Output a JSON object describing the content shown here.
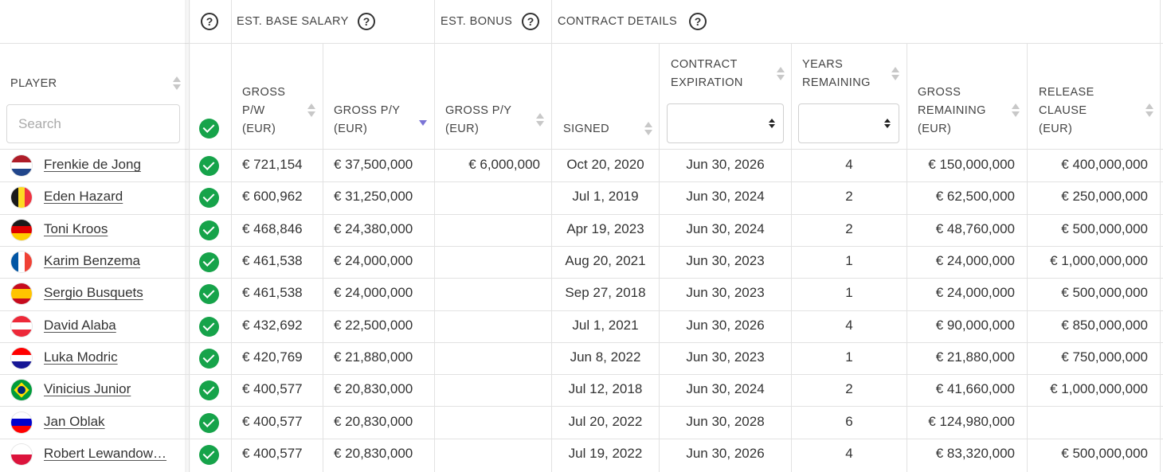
{
  "groups": {
    "est_base_salary": "EST. BASE SALARY",
    "est_bonus": "EST. BONUS",
    "contract_details": "CONTRACT DETAILS"
  },
  "columns": {
    "player": "PLAYER",
    "gross_pw": [
      "GROSS",
      "P/W",
      "(EUR)"
    ],
    "gross_py": [
      "GROSS P/Y",
      "(EUR)"
    ],
    "bonus_py": [
      "GROSS P/Y",
      "(EUR)"
    ],
    "signed": "SIGNED",
    "expiration": [
      "CONTRACT",
      "EXPIRATION"
    ],
    "years": [
      "YEARS",
      "REMAINING"
    ],
    "remaining": [
      "GROSS",
      "REMAINING",
      "(EUR)"
    ],
    "release": [
      "RELEASE",
      "CLAUSE",
      "(EUR)"
    ]
  },
  "search": {
    "placeholder": "Search"
  },
  "help_icon": "?",
  "rows": [
    {
      "name": "Frenkie de Jong",
      "flag": "netherlands",
      "pw": "€ 721,154",
      "py": "€ 37,500,000",
      "bonus": "€ 6,000,000",
      "signed": "Oct 20, 2020",
      "exp": "Jun 30, 2026",
      "years": "4",
      "remaining": "€ 150,000,000",
      "release": "€ 400,000,000"
    },
    {
      "name": "Eden Hazard",
      "flag": "belgium",
      "pw": "€ 600,962",
      "py": "€ 31,250,000",
      "bonus": "",
      "signed": "Jul 1, 2019",
      "exp": "Jun 30, 2024",
      "years": "2",
      "remaining": "€ 62,500,000",
      "release": "€ 250,000,000"
    },
    {
      "name": "Toni Kroos",
      "flag": "germany",
      "pw": "€ 468,846",
      "py": "€ 24,380,000",
      "bonus": "",
      "signed": "Apr 19, 2023",
      "exp": "Jun 30, 2024",
      "years": "2",
      "remaining": "€ 48,760,000",
      "release": "€ 500,000,000"
    },
    {
      "name": "Karim Benzema",
      "flag": "france",
      "pw": "€ 461,538",
      "py": "€ 24,000,000",
      "bonus": "",
      "signed": "Aug 20, 2021",
      "exp": "Jun 30, 2023",
      "years": "1",
      "remaining": "€ 24,000,000",
      "release": "€ 1,000,000,000"
    },
    {
      "name": "Sergio Busquets",
      "flag": "spain",
      "pw": "€ 461,538",
      "py": "€ 24,000,000",
      "bonus": "",
      "signed": "Sep 27, 2018",
      "exp": "Jun 30, 2023",
      "years": "1",
      "remaining": "€ 24,000,000",
      "release": "€ 500,000,000"
    },
    {
      "name": "David Alaba",
      "flag": "austria",
      "pw": "€ 432,692",
      "py": "€ 22,500,000",
      "bonus": "",
      "signed": "Jul 1, 2021",
      "exp": "Jun 30, 2026",
      "years": "4",
      "remaining": "€ 90,000,000",
      "release": "€ 850,000,000"
    },
    {
      "name": "Luka Modric",
      "flag": "croatia",
      "pw": "€ 420,769",
      "py": "€ 21,880,000",
      "bonus": "",
      "signed": "Jun 8, 2022",
      "exp": "Jun 30, 2023",
      "years": "1",
      "remaining": "€ 21,880,000",
      "release": "€ 750,000,000"
    },
    {
      "name": "Vinicius Junior",
      "flag": "brazil",
      "pw": "€ 400,577",
      "py": "€ 20,830,000",
      "bonus": "",
      "signed": "Jul 12, 2018",
      "exp": "Jun 30, 2024",
      "years": "2",
      "remaining": "€ 41,660,000",
      "release": "€ 1,000,000,000"
    },
    {
      "name": "Jan Oblak",
      "flag": "slovenia",
      "pw": "€ 400,577",
      "py": "€ 20,830,000",
      "bonus": "",
      "signed": "Jul 20, 2022",
      "exp": "Jun 30, 2028",
      "years": "6",
      "remaining": "€ 124,980,000",
      "release": ""
    },
    {
      "name": "Robert Lewandow…",
      "flag": "poland",
      "pw": "€ 400,577",
      "py": "€ 20,830,000",
      "bonus": "",
      "signed": "Jul 19, 2022",
      "exp": "Jun 30, 2026",
      "years": "4",
      "remaining": "€ 83,320,000",
      "release": "€ 500,000,000"
    }
  ]
}
